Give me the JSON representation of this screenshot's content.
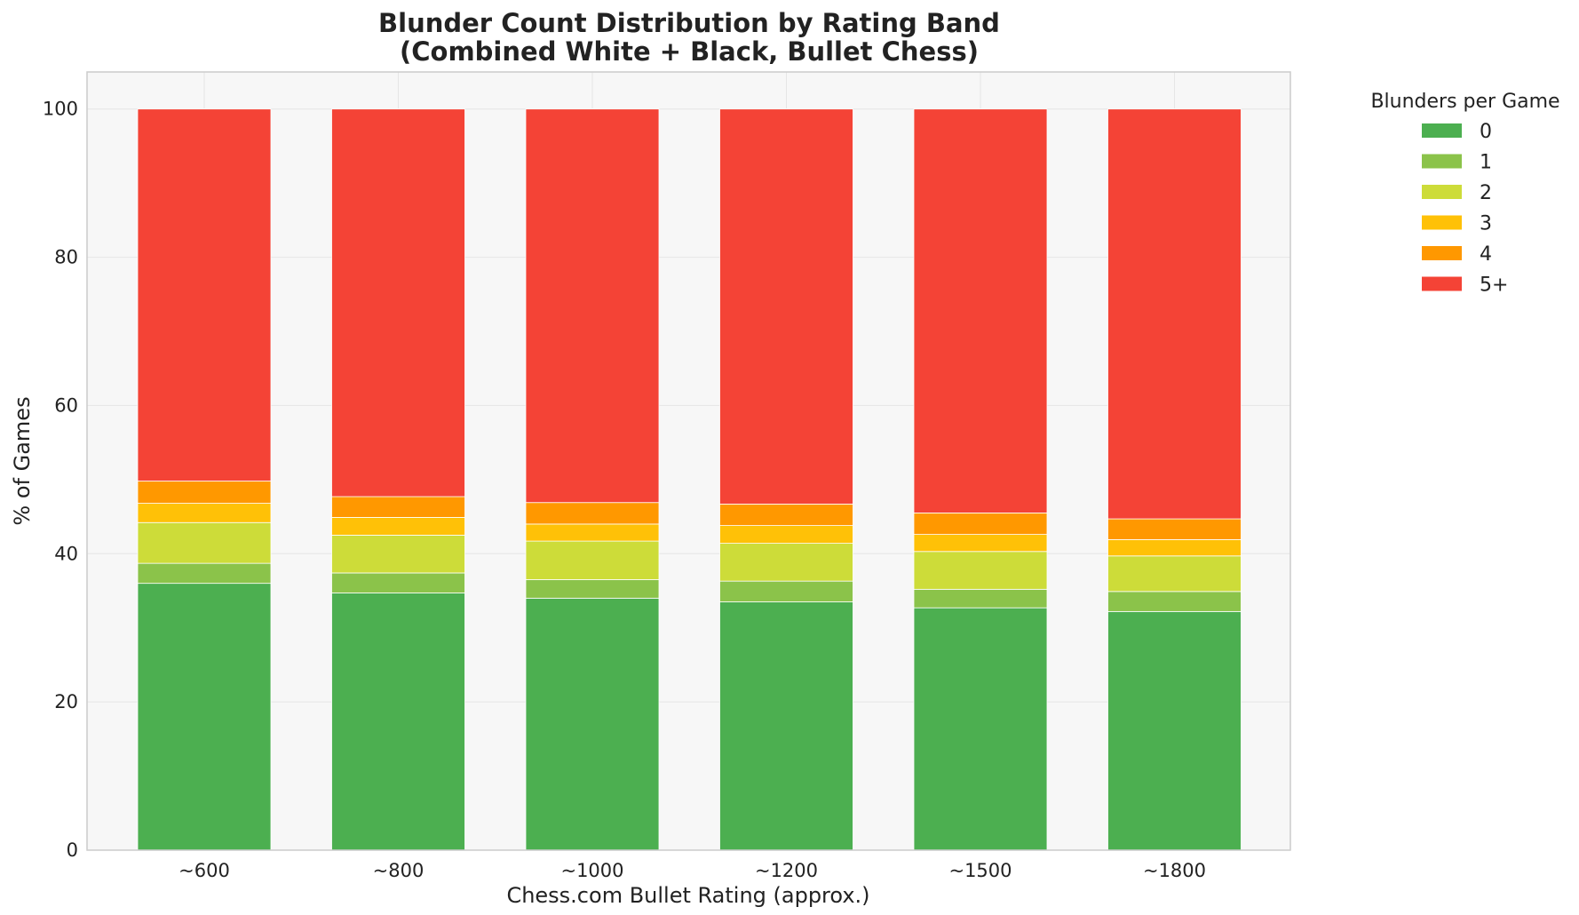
{
  "chart_data": {
    "type": "bar",
    "stacked": true,
    "title_lines": [
      "Blunder Count Distribution by Rating Band",
      "(Combined White + Black, Bullet Chess)"
    ],
    "xlabel": "Chess.com Bullet Rating (approx.)",
    "ylabel": "% of Games",
    "ylim": [
      0,
      105
    ],
    "yticks": [
      "0",
      "20",
      "40",
      "60",
      "80",
      "100"
    ],
    "grid": true,
    "legend_placement": "outside-top-right",
    "legend_title": "Blunders per Game",
    "categories": [
      "~600",
      "~800",
      "~1000",
      "~1200",
      "~1500",
      "~1800"
    ],
    "series": [
      {
        "name": "0",
        "color": "#4caf50",
        "values": [
          36.0,
          34.7,
          34.0,
          33.5,
          32.7,
          32.2
        ]
      },
      {
        "name": "1",
        "color": "#8bc34a",
        "values": [
          2.7,
          2.7,
          2.5,
          2.8,
          2.5,
          2.7
        ]
      },
      {
        "name": "2",
        "color": "#cddc39",
        "values": [
          5.5,
          5.1,
          5.2,
          5.1,
          5.1,
          4.8
        ]
      },
      {
        "name": "3",
        "color": "#ffc107",
        "values": [
          2.6,
          2.4,
          2.3,
          2.4,
          2.3,
          2.2
        ]
      },
      {
        "name": "4",
        "color": "#ff9800",
        "values": [
          3.0,
          2.8,
          2.9,
          2.9,
          2.9,
          2.8
        ]
      },
      {
        "name": "5+",
        "color": "#f44336",
        "values": [
          50.2,
          52.3,
          53.1,
          53.3,
          54.5,
          55.3
        ]
      }
    ],
    "colors": {
      "plot_background": "#f7f7f7",
      "grid": "#e6e6e6",
      "frame": "#cccccc"
    }
  }
}
